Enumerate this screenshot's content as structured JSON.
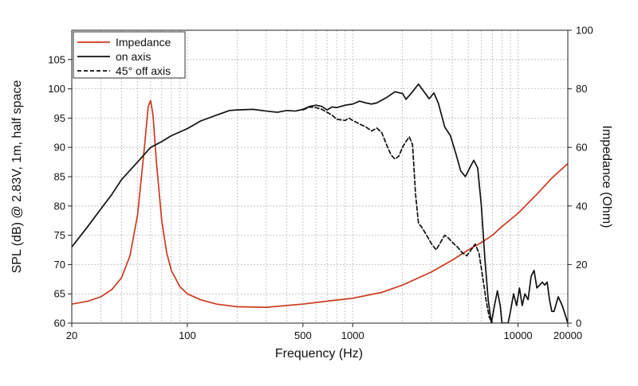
{
  "chart_data": {
    "type": "line",
    "title": "",
    "xlabel": "Frequency (Hz)",
    "ylabel": "SPL (dB) @ 2.83V, 1m, half space",
    "y2label": "Impedance (Ohm)",
    "x_scale": "log",
    "xlim": [
      20,
      20000
    ],
    "ylim": [
      60,
      110
    ],
    "y2lim": [
      0,
      100
    ],
    "x_tick_values": [
      20,
      100,
      500,
      1000,
      10000,
      20000
    ],
    "x_tick_labels": [
      "20",
      "100",
      "500",
      "1000",
      "10000",
      "20000"
    ],
    "y_tick_values": [
      60,
      65,
      70,
      75,
      80,
      85,
      90,
      95,
      100,
      105
    ],
    "y_tick_labels": [
      "60",
      "65",
      "70",
      "75",
      "80",
      "85",
      "90",
      "95",
      "100",
      "105"
    ],
    "y2_tick_values": [
      0,
      20,
      40,
      60,
      80,
      100
    ],
    "y2_tick_labels": [
      "0",
      "20",
      "40",
      "60",
      "80",
      "100"
    ],
    "grid": true,
    "legend_position": "top-left",
    "series": [
      {
        "name": "Impedance",
        "axis": "right",
        "color": "#cc3a1f",
        "style": "solid",
        "points": [
          [
            20,
            6.5
          ],
          [
            25,
            7.5
          ],
          [
            30,
            9
          ],
          [
            35,
            11.5
          ],
          [
            40,
            15.5
          ],
          [
            45,
            23
          ],
          [
            50,
            37
          ],
          [
            55,
            60
          ],
          [
            58,
            74
          ],
          [
            60,
            76
          ],
          [
            62,
            71
          ],
          [
            65,
            55
          ],
          [
            70,
            35
          ],
          [
            75,
            24
          ],
          [
            80,
            18
          ],
          [
            90,
            12.5
          ],
          [
            100,
            10
          ],
          [
            120,
            8
          ],
          [
            150,
            6.5
          ],
          [
            200,
            5.6
          ],
          [
            300,
            5.4
          ],
          [
            500,
            6.5
          ],
          [
            700,
            7.5
          ],
          [
            1000,
            8.5
          ],
          [
            1500,
            10.5
          ],
          [
            2000,
            13
          ],
          [
            3000,
            17.5
          ],
          [
            4000,
            21.5
          ],
          [
            5000,
            25
          ],
          [
            6000,
            27.5
          ],
          [
            7000,
            30
          ],
          [
            8000,
            33
          ],
          [
            10000,
            37.5
          ],
          [
            13000,
            44
          ],
          [
            16000,
            49.5
          ],
          [
            20000,
            54.5
          ]
        ]
      },
      {
        "name": "on axis",
        "axis": "left",
        "color": "#111111",
        "style": "solid",
        "points": [
          [
            20,
            73
          ],
          [
            25,
            76.5
          ],
          [
            30,
            79.5
          ],
          [
            35,
            82
          ],
          [
            40,
            84.5
          ],
          [
            50,
            87.5
          ],
          [
            60,
            90
          ],
          [
            70,
            91
          ],
          [
            80,
            92
          ],
          [
            100,
            93.2
          ],
          [
            120,
            94.5
          ],
          [
            150,
            95.5
          ],
          [
            180,
            96.3
          ],
          [
            200,
            96.4
          ],
          [
            250,
            96.5
          ],
          [
            300,
            96.2
          ],
          [
            350,
            96
          ],
          [
            400,
            96.3
          ],
          [
            450,
            96.2
          ],
          [
            500,
            96.5
          ],
          [
            550,
            97
          ],
          [
            600,
            97.2
          ],
          [
            650,
            97
          ],
          [
            700,
            96.4
          ],
          [
            750,
            96.9
          ],
          [
            800,
            96.8
          ],
          [
            900,
            97.2
          ],
          [
            1000,
            97.4
          ],
          [
            1100,
            97.9
          ],
          [
            1200,
            97.6
          ],
          [
            1300,
            97.4
          ],
          [
            1400,
            97.6
          ],
          [
            1600,
            98.5
          ],
          [
            1800,
            99.5
          ],
          [
            2000,
            99.2
          ],
          [
            2100,
            98.2
          ],
          [
            2300,
            99.5
          ],
          [
            2500,
            100.8
          ],
          [
            2700,
            99.5
          ],
          [
            2900,
            98.3
          ],
          [
            3100,
            99.3
          ],
          [
            3300,
            97.5
          ],
          [
            3600,
            93.5
          ],
          [
            3900,
            92
          ],
          [
            4200,
            89
          ],
          [
            4500,
            86
          ],
          [
            4800,
            85
          ],
          [
            5100,
            86.5
          ],
          [
            5400,
            87.8
          ],
          [
            5700,
            86.5
          ],
          [
            6000,
            80
          ],
          [
            6300,
            71
          ],
          [
            6600,
            64
          ],
          [
            6900,
            60
          ],
          [
            7200,
            63
          ],
          [
            7500,
            65.5
          ],
          [
            7800,
            63
          ],
          [
            8000,
            60
          ],
          [
            8700,
            60
          ],
          [
            9000,
            62
          ],
          [
            9400,
            65
          ],
          [
            9800,
            63
          ],
          [
            10200,
            66
          ],
          [
            10600,
            63
          ],
          [
            11000,
            65
          ],
          [
            11500,
            64
          ],
          [
            12000,
            68
          ],
          [
            12500,
            69
          ],
          [
            13000,
            66
          ],
          [
            13500,
            66.5
          ],
          [
            14000,
            67
          ],
          [
            14500,
            66.5
          ],
          [
            15000,
            67
          ],
          [
            15500,
            64
          ],
          [
            16000,
            62
          ],
          [
            16500,
            62
          ],
          [
            17500,
            64.5
          ],
          [
            18500,
            63
          ],
          [
            19500,
            61
          ],
          [
            20000,
            60
          ]
        ]
      },
      {
        "name": "45° off axis",
        "axis": "left",
        "color": "#111111",
        "style": "dashed",
        "points": [
          [
            500,
            96.4
          ],
          [
            550,
            96.9
          ],
          [
            600,
            96.8
          ],
          [
            650,
            96.5
          ],
          [
            700,
            96
          ],
          [
            750,
            95.5
          ],
          [
            800,
            94.8
          ],
          [
            900,
            94.6
          ],
          [
            950,
            95
          ],
          [
            1000,
            94.6
          ],
          [
            1100,
            94
          ],
          [
            1200,
            93.5
          ],
          [
            1300,
            92.8
          ],
          [
            1400,
            93.3
          ],
          [
            1500,
            92.5
          ],
          [
            1600,
            90.5
          ],
          [
            1700,
            88.8
          ],
          [
            1800,
            88
          ],
          [
            1900,
            88.5
          ],
          [
            2000,
            90
          ],
          [
            2100,
            91
          ],
          [
            2200,
            91.8
          ],
          [
            2300,
            90.5
          ],
          [
            2400,
            82
          ],
          [
            2500,
            77
          ],
          [
            2600,
            76.5
          ],
          [
            2800,
            75
          ],
          [
            3000,
            73.5
          ],
          [
            3200,
            72.5
          ],
          [
            3400,
            73.8
          ],
          [
            3600,
            75
          ],
          [
            3800,
            74.5
          ],
          [
            4000,
            73.8
          ],
          [
            4300,
            73
          ],
          [
            4600,
            72
          ],
          [
            4900,
            71.5
          ],
          [
            5200,
            72.5
          ],
          [
            5500,
            73.5
          ],
          [
            5800,
            72
          ],
          [
            6100,
            68
          ],
          [
            6400,
            64
          ],
          [
            6700,
            61
          ],
          [
            7000,
            60
          ]
        ]
      }
    ]
  }
}
